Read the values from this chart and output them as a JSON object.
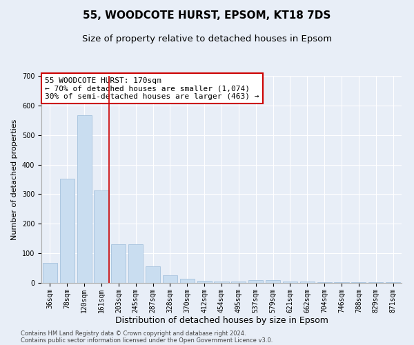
{
  "title1": "55, WOODCOTE HURST, EPSOM, KT18 7DS",
  "title2": "Size of property relative to detached houses in Epsom",
  "xlabel": "Distribution of detached houses by size in Epsom",
  "ylabel": "Number of detached properties",
  "categories": [
    "36sqm",
    "78sqm",
    "120sqm",
    "161sqm",
    "203sqm",
    "245sqm",
    "287sqm",
    "328sqm",
    "370sqm",
    "412sqm",
    "454sqm",
    "495sqm",
    "537sqm",
    "579sqm",
    "621sqm",
    "662sqm",
    "704sqm",
    "746sqm",
    "788sqm",
    "829sqm",
    "871sqm"
  ],
  "values": [
    68,
    353,
    568,
    312,
    130,
    130,
    57,
    25,
    15,
    7,
    5,
    5,
    10,
    10,
    5,
    5,
    3,
    2,
    2,
    2,
    2
  ],
  "bar_color": "#c9ddf0",
  "bar_edge_color": "#9bbad8",
  "vline_color": "#cc0000",
  "vline_pos": 3.45,
  "annotation_text": "55 WOODCOTE HURST: 170sqm\n← 70% of detached houses are smaller (1,074)\n30% of semi-detached houses are larger (463) →",
  "annotation_box_color": "#ffffff",
  "annotation_box_edge": "#cc0000",
  "background_color": "#e8eef7",
  "footer1": "Contains HM Land Registry data © Crown copyright and database right 2024.",
  "footer2": "Contains public sector information licensed under the Open Government Licence v3.0.",
  "ylim": [
    0,
    700
  ],
  "yticks": [
    0,
    100,
    200,
    300,
    400,
    500,
    600,
    700
  ],
  "title1_fontsize": 11,
  "title2_fontsize": 9.5,
  "xlabel_fontsize": 9,
  "ylabel_fontsize": 8,
  "tick_fontsize": 7,
  "annotation_fontsize": 8,
  "footer_fontsize": 6
}
